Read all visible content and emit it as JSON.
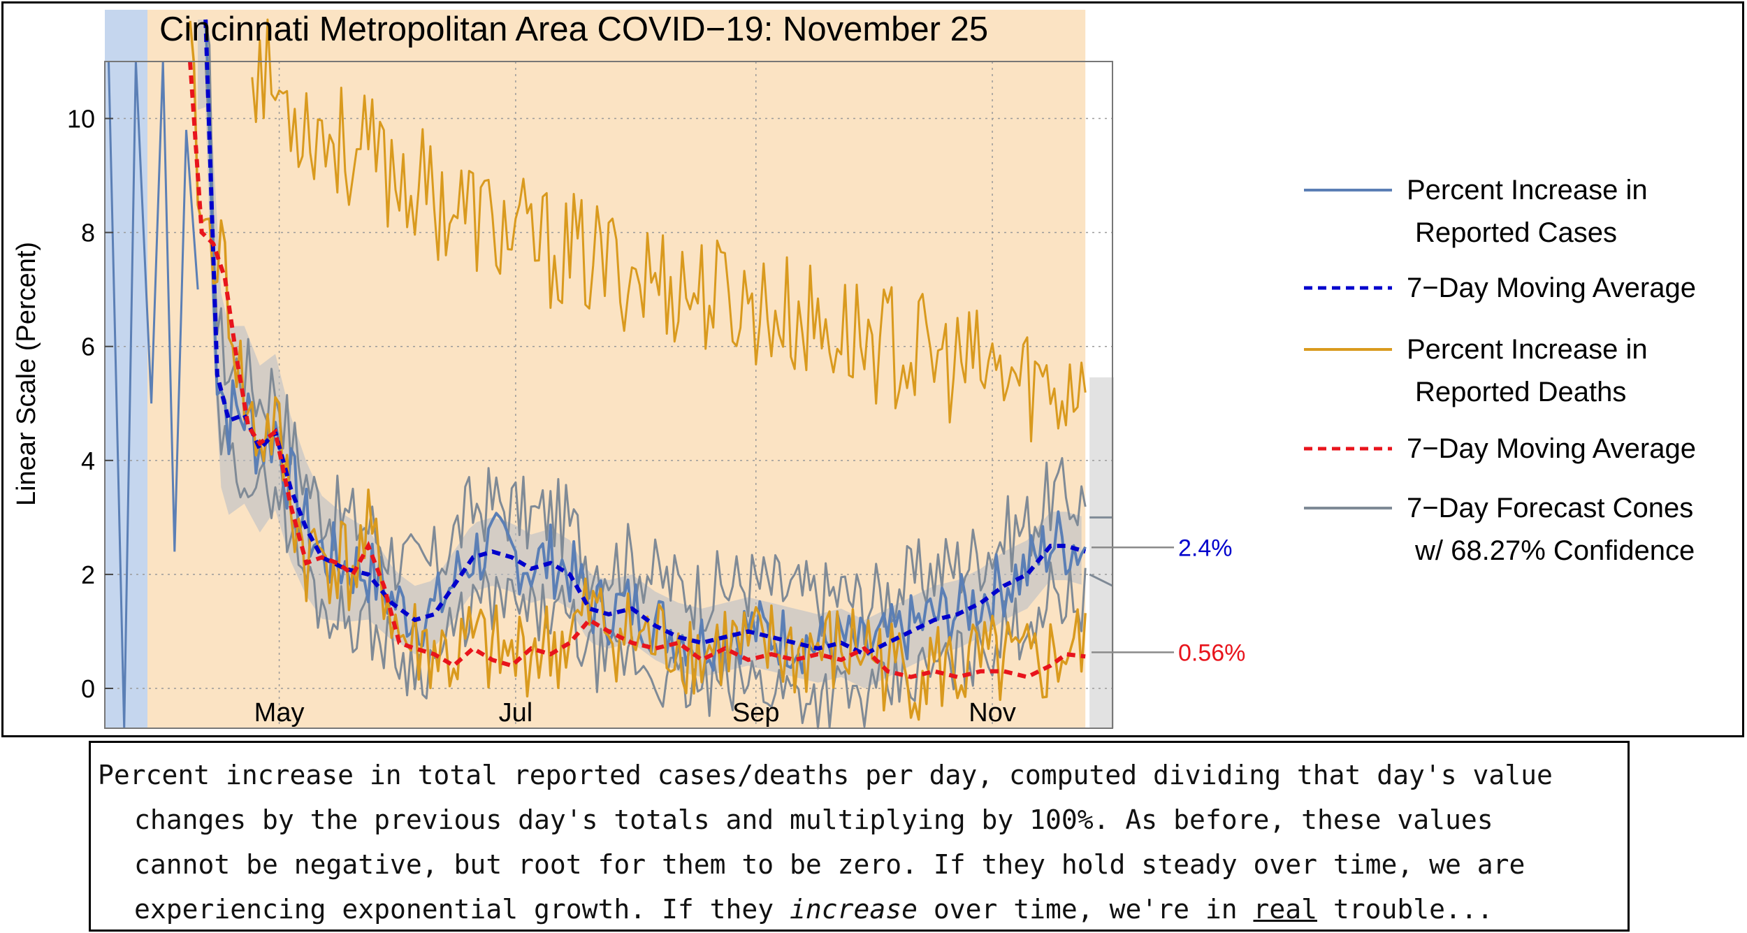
{
  "colors": {
    "cases": "#5b7fb5",
    "cases_avg": "#0000cc",
    "deaths": "#d99a1e",
    "deaths_avg": "#e8141c",
    "forecast": "#7f8a96",
    "cone_fill": "#b4bcc6",
    "deaths_band": "#fbe3c3",
    "cases_band": "#c5d6ee",
    "forecast_region": "#e2e2e2",
    "grid": "#9a9a9a"
  },
  "caption": {
    "line1": "Percent increase in total reported cases/deaths per day, computed dividing that day's value",
    "line2": "changes by the previous day's totals and multiplying by 100%. As before, these values",
    "line3": "cannot be negative, but root for them to be zero. If they hold steady over time, we are",
    "line4_a": "experiencing exponential growth. If they ",
    "line4_em": "increase",
    "line4_b": " over time, we're in ",
    "line4_ul": "real",
    "line4_c": " trouble..."
  },
  "chart_data": {
    "type": "line",
    "title": "Cincinnati Metropolitan Area COVID−19: November 25",
    "ylabel": "Linear Scale (Percent)",
    "xlabel": "",
    "ylim": [
      0,
      11
    ],
    "y_ticks": [
      "0",
      "2",
      "4",
      "6",
      "8",
      "10"
    ],
    "x_range": [
      "2020-03-17",
      "2020-12-02"
    ],
    "x_ticks": [
      {
        "date": "2020-05-01",
        "label": "May"
      },
      {
        "date": "2020-07-01",
        "label": "Jul"
      },
      {
        "date": "2020-09-01",
        "label": "Sep"
      },
      {
        "date": "2020-11-01",
        "label": "Nov"
      }
    ],
    "grid": true,
    "legend_position": "right",
    "legend": [
      {
        "key": "cases",
        "style": "solid",
        "line1": "Percent Increase in",
        "line2": "Reported Cases"
      },
      {
        "key": "cases_avg",
        "style": "dashed",
        "line1": "7−Day Moving Average",
        "line2": ""
      },
      {
        "key": "deaths",
        "style": "solid",
        "line1": "Percent Increase in",
        "line2": "Reported Deaths"
      },
      {
        "key": "deaths_avg",
        "style": "dashed",
        "line1": "7−Day Moving Average",
        "line2": ""
      },
      {
        "key": "forecast",
        "style": "solid",
        "line1": "7−Day Forecast Cones",
        "line2": "w/ 68.27% Confidence"
      }
    ],
    "annotations": [
      {
        "text": "2.4%",
        "series": "cases_avg",
        "value": 2.4
      },
      {
        "text": "0.56%",
        "series": "deaths_avg",
        "value": 0.56
      }
    ],
    "cases_band_start": "2020-03-17",
    "deaths_band_start": "2020-03-28",
    "last_data_date": "2020-11-25",
    "series": [
      {
        "key": "cases_avg",
        "name": "7−Day Moving Average",
        "x": [
          "2020-04-12",
          "2020-04-15",
          "2020-04-18",
          "2020-04-22",
          "2020-04-26",
          "2020-04-30",
          "2020-05-04",
          "2020-05-08",
          "2020-05-12",
          "2020-05-18",
          "2020-05-24",
          "2020-05-30",
          "2020-06-05",
          "2020-06-10",
          "2020-06-15",
          "2020-06-20",
          "2020-06-25",
          "2020-06-30",
          "2020-07-05",
          "2020-07-10",
          "2020-07-15",
          "2020-07-20",
          "2020-07-25",
          "2020-07-31",
          "2020-08-06",
          "2020-08-12",
          "2020-08-18",
          "2020-08-24",
          "2020-08-30",
          "2020-09-05",
          "2020-09-11",
          "2020-09-17",
          "2020-09-23",
          "2020-09-29",
          "2020-10-05",
          "2020-10-11",
          "2020-10-17",
          "2020-10-23",
          "2020-10-29",
          "2020-11-04",
          "2020-11-10",
          "2020-11-16",
          "2020-11-20",
          "2020-11-25"
        ],
        "y": [
          12,
          5.5,
          4.7,
          4.8,
          4.2,
          4.5,
          3.5,
          2.8,
          2.3,
          2.1,
          2.0,
          1.5,
          1.2,
          1.3,
          1.8,
          2.3,
          2.4,
          2.3,
          2.1,
          2.2,
          2.0,
          1.4,
          1.3,
          1.4,
          1.1,
          0.9,
          0.8,
          0.9,
          1.0,
          0.9,
          0.8,
          0.7,
          0.8,
          0.6,
          0.8,
          1.0,
          1.2,
          1.3,
          1.5,
          1.8,
          2.0,
          2.5,
          2.5,
          2.4
        ]
      },
      {
        "key": "deaths_avg",
        "name": "7−Day Moving Average",
        "x": [
          "2020-04-08",
          "2020-04-11",
          "2020-04-14",
          "2020-04-17",
          "2020-04-20",
          "2020-04-23",
          "2020-04-26",
          "2020-04-30",
          "2020-05-04",
          "2020-05-08",
          "2020-05-12",
          "2020-05-16",
          "2020-05-20",
          "2020-05-24",
          "2020-05-28",
          "2020-06-01",
          "2020-06-05",
          "2020-06-10",
          "2020-06-15",
          "2020-06-20",
          "2020-06-25",
          "2020-06-30",
          "2020-07-05",
          "2020-07-10",
          "2020-07-15",
          "2020-07-20",
          "2020-07-25",
          "2020-07-31",
          "2020-08-06",
          "2020-08-12",
          "2020-08-18",
          "2020-08-24",
          "2020-08-30",
          "2020-09-05",
          "2020-09-11",
          "2020-09-17",
          "2020-09-23",
          "2020-09-29",
          "2020-10-05",
          "2020-10-11",
          "2020-10-17",
          "2020-10-23",
          "2020-10-29",
          "2020-11-04",
          "2020-11-10",
          "2020-11-16",
          "2020-11-20",
          "2020-11-25"
        ],
        "y": [
          11,
          8.0,
          7.8,
          7.2,
          5.8,
          4.6,
          4.3,
          4.5,
          3.2,
          2.2,
          2.3,
          2.2,
          2.0,
          2.5,
          1.8,
          0.8,
          0.7,
          0.6,
          0.4,
          0.7,
          0.5,
          0.4,
          0.7,
          0.6,
          0.8,
          1.2,
          1.0,
          0.8,
          0.7,
          0.8,
          0.5,
          0.7,
          0.5,
          0.6,
          0.5,
          0.6,
          0.5,
          0.7,
          0.3,
          0.2,
          0.3,
          0.2,
          0.3,
          0.3,
          0.2,
          0.4,
          0.6,
          0.56
        ]
      },
      {
        "key": "deaths",
        "name": "Percent Increase in Reported Deaths",
        "x": [
          "2020-04-24",
          "2020-05-01",
          "2020-05-10",
          "2020-05-20",
          "2020-05-30",
          "2020-06-10",
          "2020-06-20",
          "2020-07-01",
          "2020-07-10",
          "2020-07-20",
          "2020-08-01",
          "2020-08-10",
          "2020-08-20",
          "2020-09-01",
          "2020-09-10",
          "2020-09-20",
          "2020-10-01",
          "2020-10-10",
          "2020-10-20",
          "2020-11-01",
          "2020-11-10",
          "2020-11-20",
          "2020-11-25"
        ],
        "y": [
          11,
          10.3,
          9.8,
          9.3,
          9.0,
          8.5,
          8.2,
          7.8,
          7.6,
          7.4,
          7.2,
          7.0,
          6.8,
          6.6,
          6.4,
          6.2,
          6.0,
          5.8,
          5.6,
          5.4,
          5.3,
          5.1,
          5.8
        ]
      },
      {
        "key": "forecast",
        "name": "7−Day Forecast Cones",
        "x": [
          "2020-11-26",
          "2020-12-02"
        ],
        "y": [
          2.4,
          2.4
        ]
      }
    ]
  }
}
